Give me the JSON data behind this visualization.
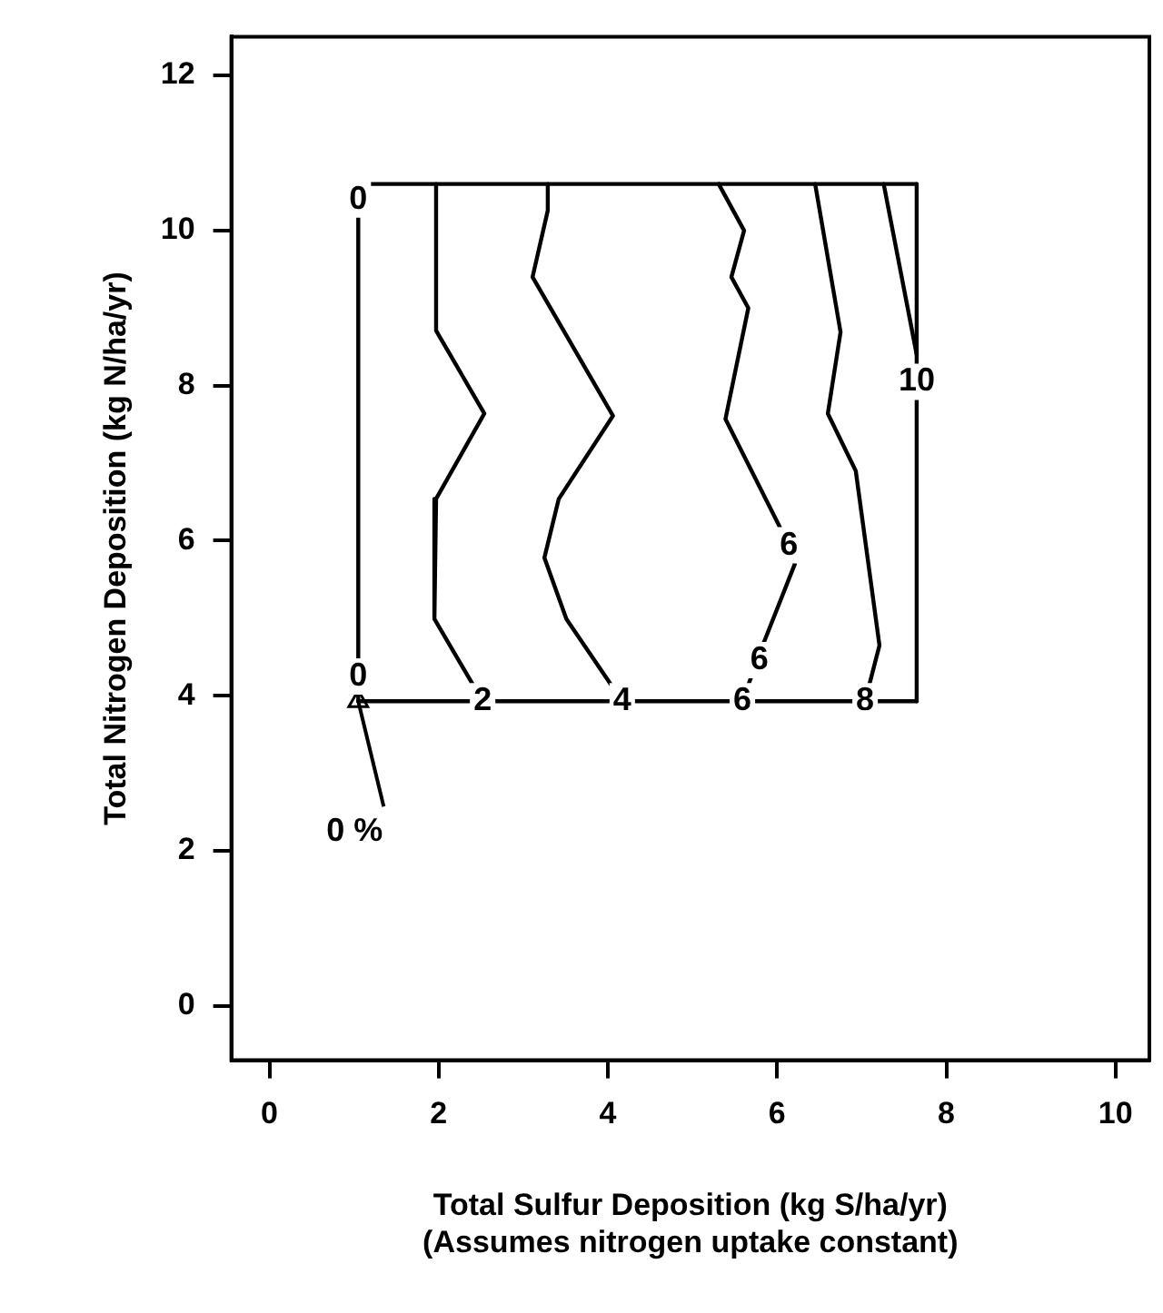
{
  "chart_data": {
    "type": "line",
    "xlabel": "Total Sulfur Deposition (kg S/ha/yr)\n(Assumes nitrogen uptake constant)",
    "ylabel": "Total Nitrogen Deposition (kg N/ha/yr)",
    "xlim": [
      -0.45,
      10.4
    ],
    "ylim": [
      -0.7,
      12.5
    ],
    "xticks": [
      0,
      2,
      4,
      6,
      8,
      10
    ],
    "yticks": [
      0,
      2,
      4,
      6,
      8,
      10,
      12
    ],
    "grid": false,
    "legend": false,
    "marker": "none",
    "line_style": "solid",
    "series": [
      {
        "color": "#000000",
        "x": [
          1.05,
          7.65
        ],
        "values": [
          3.93,
          3.93
        ]
      },
      {
        "color": "#000000",
        "x": [
          1.05,
          7.65
        ],
        "values": [
          10.6,
          10.6
        ]
      },
      {
        "color": "#000000",
        "x": [
          1.05,
          1.05
        ],
        "values": [
          3.93,
          10.6
        ]
      },
      {
        "color": "#000000",
        "x": [
          7.65,
          7.65
        ],
        "values": [
          3.93,
          10.6
        ]
      },
      {
        "color": "#000000",
        "x": [
          1.97,
          1.97,
          2.54,
          1.97,
          1.95,
          2.52
        ],
        "values": [
          10.6,
          8.71,
          7.64,
          6.54,
          4.99,
          3.93
        ]
      },
      {
        "color": "#000000",
        "x": [
          3.29,
          3.29,
          3.11,
          4.06,
          3.42,
          3.25,
          3.51,
          4.17
        ],
        "values": [
          10.6,
          10.26,
          9.4,
          7.61,
          6.54,
          5.78,
          4.99,
          3.93
        ]
      },
      {
        "color": "#000000",
        "x": [
          5.31,
          5.61,
          5.46,
          5.66,
          5.39,
          6.03,
          6.21,
          5.83,
          5.59
        ],
        "values": [
          10.6,
          10.0,
          9.4,
          9.0,
          7.57,
          6.18,
          5.7,
          4.65,
          3.93
        ]
      },
      {
        "color": "#000000",
        "x": [
          6.45,
          6.75,
          6.6,
          6.93,
          7.21,
          7.04
        ],
        "values": [
          10.6,
          8.69,
          7.64,
          6.9,
          4.65,
          3.93
        ]
      },
      {
        "color": "#000000",
        "x": [
          7.26,
          7.65
        ],
        "values": [
          10.6,
          8.4
        ]
      },
      {
        "type": "scatter",
        "marker": "triangle",
        "color": "#000000",
        "x": [
          1.05
        ],
        "values": [
          3.93
        ]
      }
    ],
    "annotations": [
      {
        "text": "0",
        "x": 1.05,
        "y": 10.4
      },
      {
        "text": "0",
        "x": 1.05,
        "y": 4.25
      },
      {
        "text": "2",
        "x": 2.52,
        "y": 3.93
      },
      {
        "text": "4",
        "x": 4.17,
        "y": 3.93
      },
      {
        "text": "6",
        "x": 5.59,
        "y": 3.93
      },
      {
        "text": "6",
        "x": 5.79,
        "y": 4.46
      },
      {
        "text": "6",
        "x": 6.14,
        "y": 5.94
      },
      {
        "text": "8",
        "x": 7.04,
        "y": 3.93
      },
      {
        "text": "10",
        "x": 7.65,
        "y": 8.05
      },
      {
        "text": "0 %",
        "x": 1.05,
        "y": 3.93
      }
    ]
  }
}
